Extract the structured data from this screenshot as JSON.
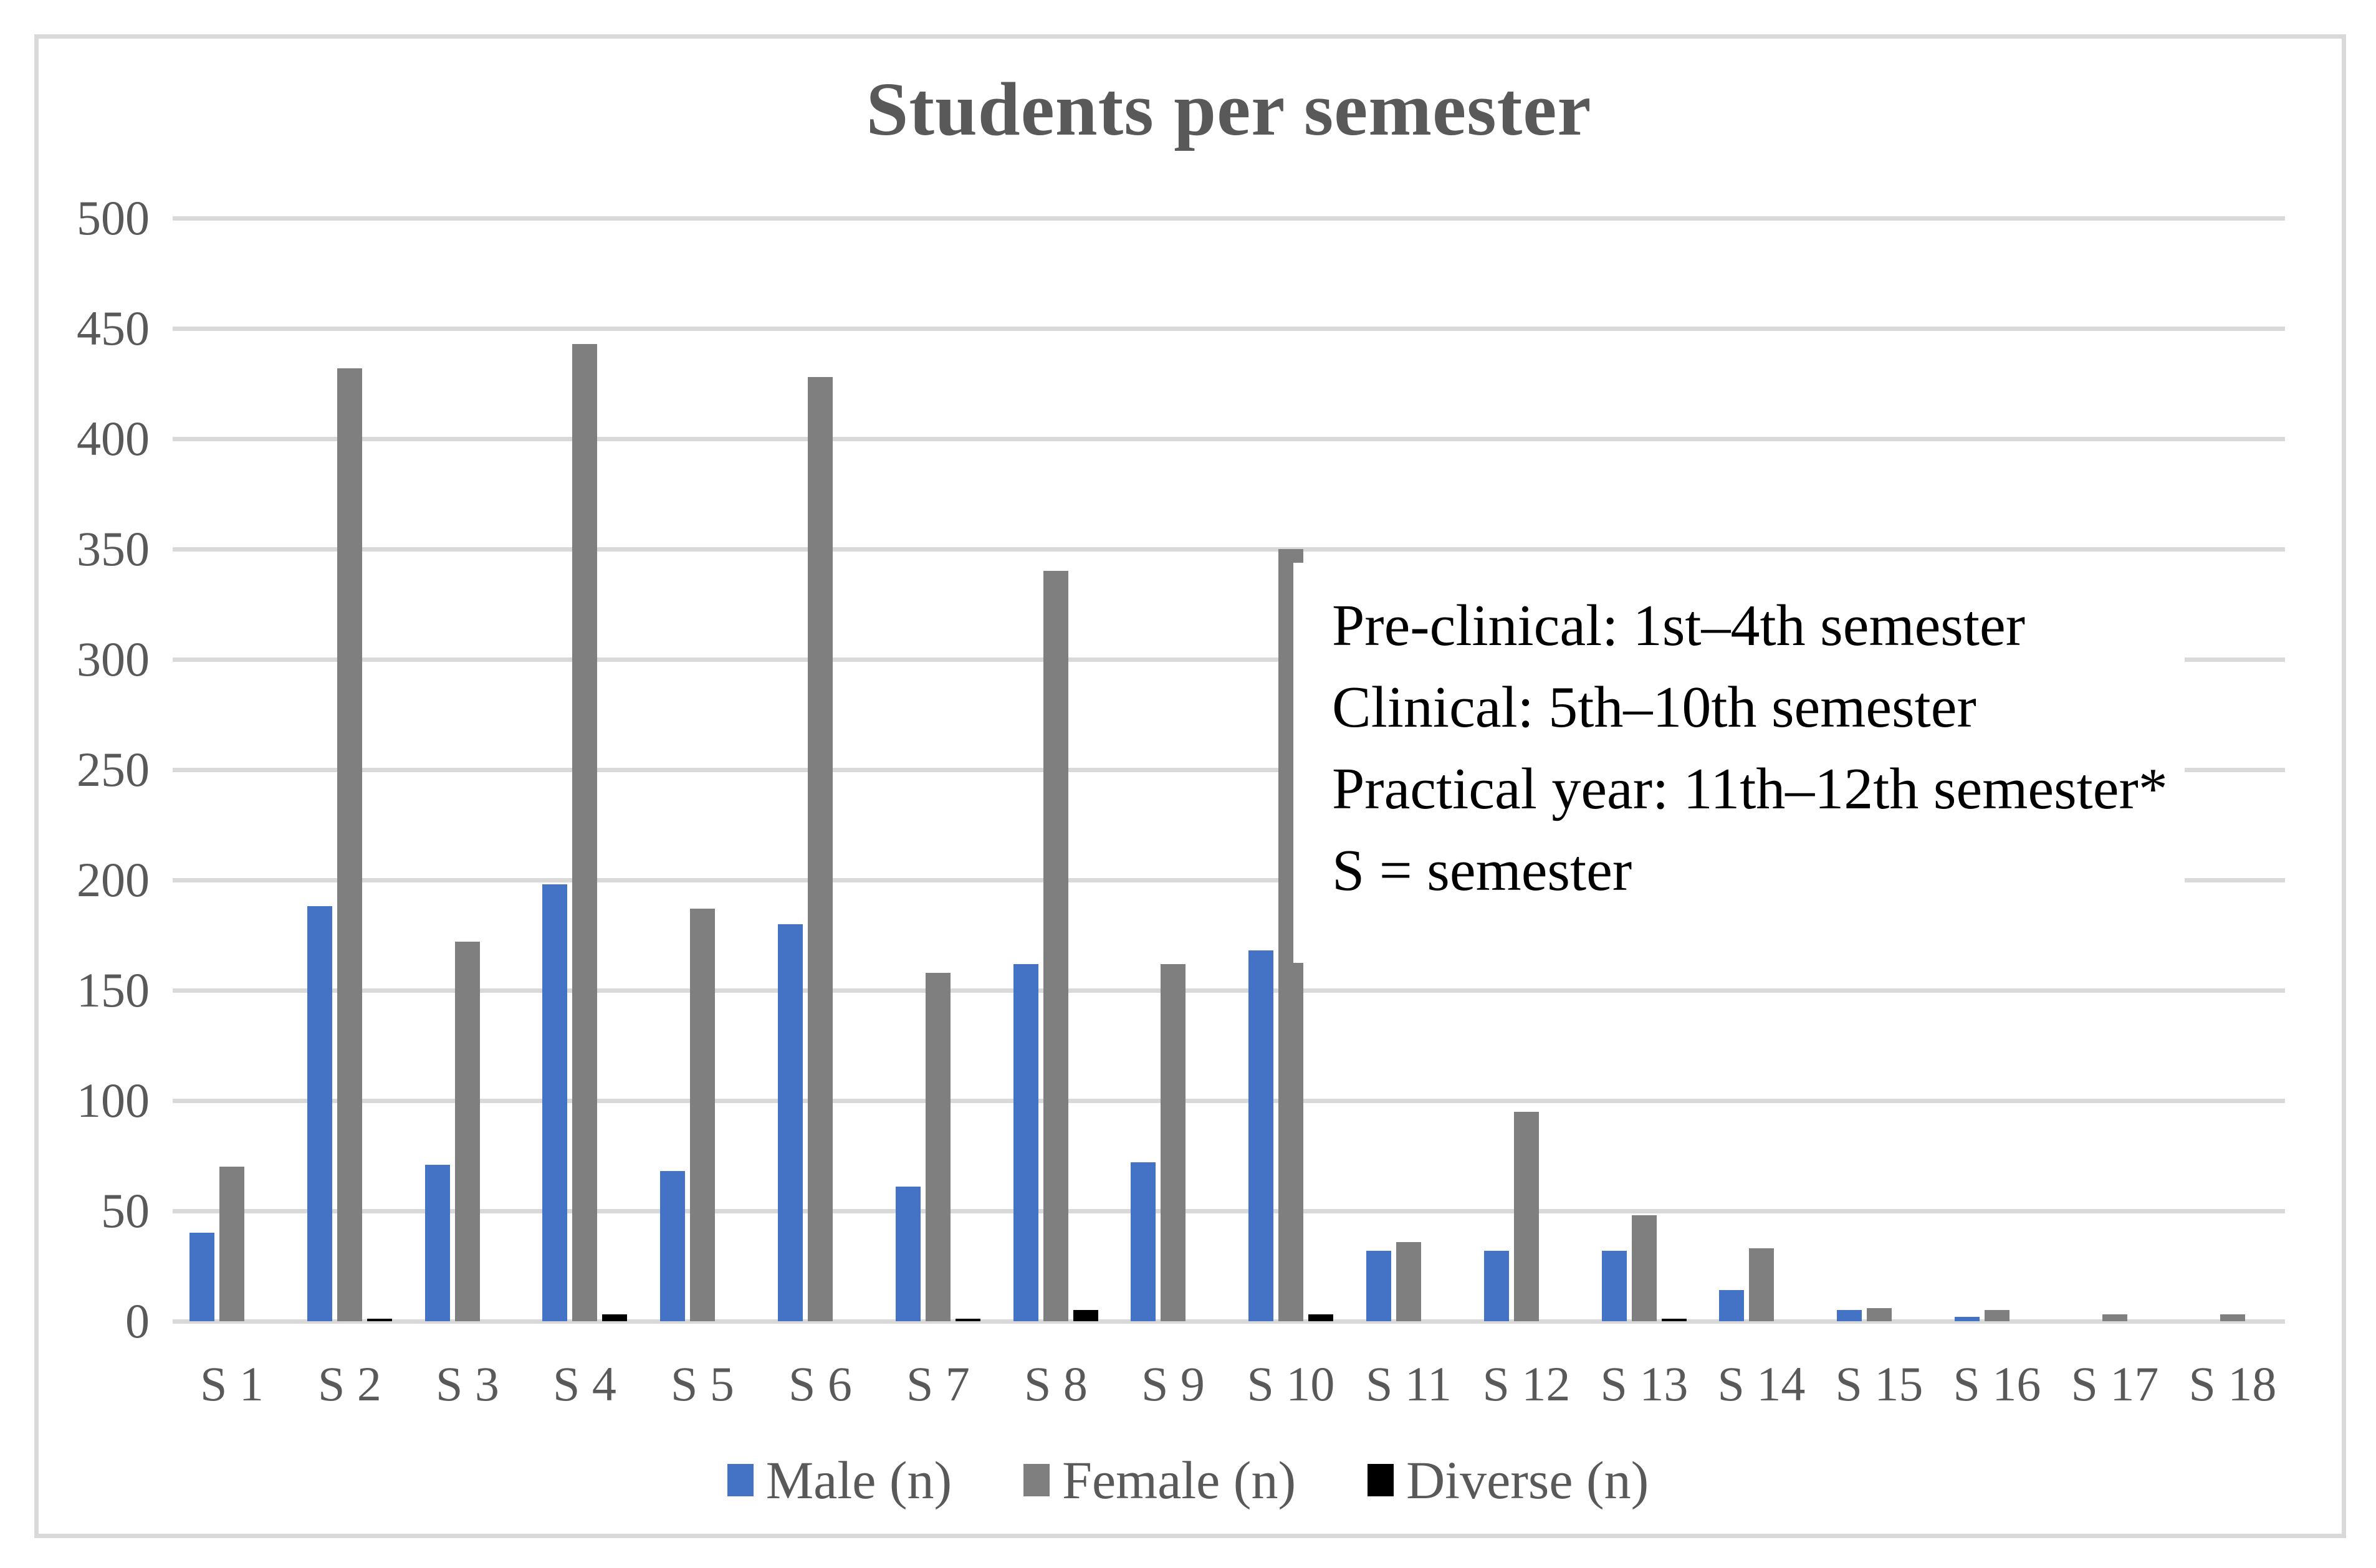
{
  "chart_data": {
    "type": "bar",
    "title": "Students per semester",
    "categories": [
      "S 1",
      "S 2",
      "S 3",
      "S 4",
      "S 5",
      "S 6",
      "S 7",
      "S 8",
      "S 9",
      "S 10",
      "S 11",
      "S 12",
      "S 13",
      "S 14",
      "S 15",
      "S 16",
      "S 17",
      "S 18"
    ],
    "series": [
      {
        "name": "Male (n)",
        "color": "#4472c4",
        "values": [
          40,
          188,
          71,
          198,
          68,
          180,
          61,
          162,
          72,
          168,
          32,
          32,
          32,
          14,
          5,
          2,
          0,
          0
        ]
      },
      {
        "name": "Female (n)",
        "color": "#7f7f7f",
        "values": [
          70,
          432,
          172,
          443,
          187,
          428,
          158,
          340,
          162,
          350,
          36,
          95,
          48,
          33,
          6,
          5,
          3,
          3
        ]
      },
      {
        "name": "Diverse (n)",
        "color": "#000000",
        "values": [
          0,
          1,
          0,
          3,
          0,
          0,
          1,
          5,
          0,
          3,
          0,
          0,
          1,
          0,
          0,
          0,
          0,
          0
        ]
      }
    ],
    "xlabel": "",
    "ylabel": "",
    "ylim": [
      0,
      500
    ],
    "y_ticks": [
      0,
      50,
      100,
      150,
      200,
      250,
      300,
      350,
      400,
      450,
      500
    ],
    "grid": true,
    "legend_position": "bottom",
    "annotation": {
      "lines": [
        "Pre-clinical: 1st–4th semester",
        "Clinical: 5th–10th semester",
        "Practical year: 11th–12th semester*",
        "S = semester"
      ]
    },
    "colors": {
      "text": "#595959",
      "gridline": "#d9d9d9",
      "frame": "#d9d9d9",
      "annotation_text": "#000000",
      "background": "#ffffff"
    }
  }
}
